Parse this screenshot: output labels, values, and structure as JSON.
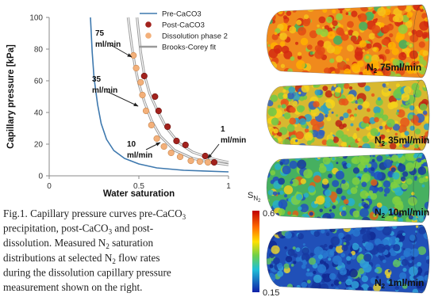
{
  "chart_data": {
    "type": "scatter",
    "xlabel": "Water saturation",
    "ylabel": "Capillary pressure [kPa]",
    "xlim": [
      0,
      1
    ],
    "ylim": [
      0,
      100
    ],
    "xticks": [
      0,
      0.5,
      1
    ],
    "yticks": [
      0,
      20,
      40,
      60,
      80,
      100
    ],
    "legend": "upper right",
    "series": [
      {
        "name": "Pre-CaCO3",
        "mode": "line",
        "color": "#3d78ae",
        "x": [
          0.23,
          0.24,
          0.25,
          0.27,
          0.29,
          0.32,
          0.36,
          0.42,
          0.5,
          0.6,
          0.75,
          1.0
        ],
        "values": [
          100,
          78,
          62,
          45,
          33,
          23,
          16,
          11,
          7.5,
          5,
          3.5,
          2.5
        ]
      },
      {
        "name": "Post-CaCO3",
        "mode": "marker",
        "color": "#a2221d",
        "x": [
          0.53,
          0.59,
          0.61,
          0.66,
          0.71,
          0.76,
          0.87,
          0.92
        ],
        "values": [
          63,
          50,
          41,
          31,
          22,
          19.5,
          12.5,
          8.5
        ]
      },
      {
        "name": "Dissolution phase 2",
        "mode": "marker",
        "color": "#f3b07a",
        "x": [
          0.47,
          0.485,
          0.51,
          0.52,
          0.54,
          0.57,
          0.6,
          0.64,
          0.68,
          0.73,
          0.79,
          0.84,
          0.885
        ],
        "values": [
          76,
          68,
          59,
          51,
          41,
          32,
          23.5,
          18.5,
          14.5,
          12,
          9.5,
          9,
          8.5
        ]
      },
      {
        "name": "Brooks-Corey fit",
        "mode": "line",
        "line_style": "double",
        "color": "#9a9a9a",
        "x": [
          0.44,
          0.46,
          0.48,
          0.5,
          0.53,
          0.57,
          0.62,
          0.7,
          0.8,
          0.9,
          1.0,
          null,
          0.49,
          0.51,
          0.53,
          0.56,
          0.6,
          0.65,
          0.72,
          0.8,
          0.9,
          1.0
        ],
        "values": [
          100,
          82,
          68,
          58,
          47,
          35,
          25,
          16,
          11,
          8.5,
          7,
          null,
          100,
          78,
          64,
          52,
          42,
          31,
          21,
          15,
          11,
          8.5
        ]
      }
    ],
    "annotations": [
      [
        "75",
        "ml/min"
      ],
      [
        "35",
        "ml/min"
      ],
      [
        "10",
        "ml/min"
      ],
      [
        "1",
        "ml/min"
      ]
    ]
  },
  "figure": {
    "images": [
      {
        "gas": "N",
        "sub": "2",
        "rate": "75ml/min"
      },
      {
        "gas": "N",
        "sub": "2",
        "rate": "35ml/min"
      },
      {
        "gas": "N",
        "sub": "2",
        "rate": "10ml/min"
      },
      {
        "gas": "N",
        "sub": "2",
        "rate": "1ml/min"
      }
    ],
    "colorbar": {
      "symbol": "S",
      "sub": "N",
      "subsub": "2",
      "max": "0.6",
      "min": "0.15"
    }
  },
  "caption": {
    "lines": [
      [
        "Fig.1. Capillary pressure curves pre-CaCO",
        "3"
      ],
      [
        "precipitation, post-CaCO",
        "3",
        " and post-"
      ],
      [
        "dissolution. Measured N",
        "2",
        " saturation"
      ],
      [
        "distributions at selected N",
        "2",
        " flow rates"
      ],
      [
        "during the dissolution capillary pressure"
      ],
      [
        "measurement shown on the right."
      ]
    ]
  }
}
